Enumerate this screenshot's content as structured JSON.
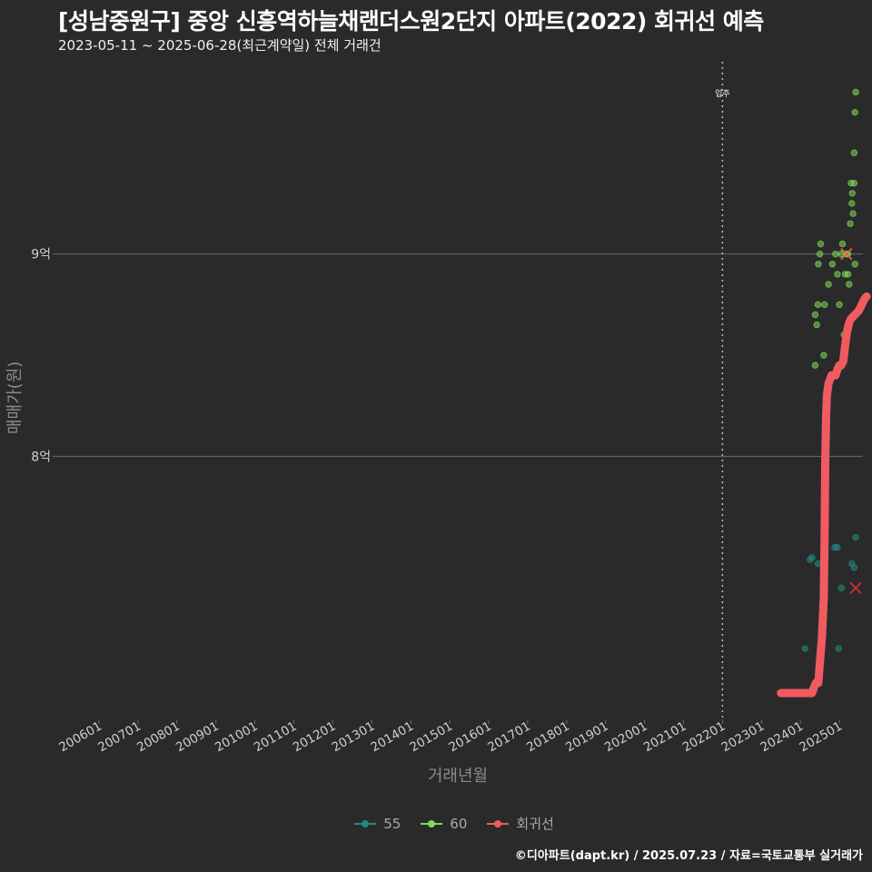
{
  "header": {
    "title": "[성남중원구] 중앙 신흥역하늘채랜더스원2단지 아파트(2022) 회귀선 예측",
    "subtitle": "2023-05-11 ~ 2025-06-28(최근계약일) 전체 거래건"
  },
  "footer": {
    "credit": "©디아파트(dapt.kr) / 2025.07.23 / 자료=국토교통부 실거래가"
  },
  "chart_data": {
    "type": "scatter",
    "title": "[성남중원구] 중앙 신흥역하늘채랜더스원2단지 아파트(2022) 회귀선 예측",
    "xlabel": "거래년월",
    "ylabel": "매매가(원)",
    "xlim": [
      2006.0,
      2026.7
    ],
    "ylim": [
      6.7,
      9.95
    ],
    "ytick_values": [
      8,
      9
    ],
    "ytick_labels": [
      "8억",
      "9억"
    ],
    "xtick_values": [
      2006.0,
      2007.0,
      2008.0,
      2009.0,
      2010.0,
      2011.0,
      2012.0,
      2013.0,
      2014.0,
      2015.0,
      2016.0,
      2017.0,
      2018.0,
      2019.0,
      2020.0,
      2021.0,
      2022.0,
      2023.0,
      2024.0,
      2025.0
    ],
    "xtick_labels": [
      "200601",
      "200701",
      "200801",
      "200901",
      "201001",
      "201101",
      "201201",
      "201301",
      "201401",
      "201501",
      "201601",
      "201701",
      "201801",
      "201901",
      "202001",
      "202101",
      "202201",
      "202301",
      "202401",
      "202501"
    ],
    "vline": {
      "x": 2022.0,
      "label": "입주"
    },
    "colors": {
      "s55": "#1f8a7d",
      "s60": "#7ed957",
      "reg": "#f05b5f",
      "grid": "#6a6a6a",
      "tick": "#cfcfcf"
    },
    "series": [
      {
        "name": "55",
        "points": [
          [
            2024.12,
            7.05
          ],
          [
            2024.25,
            7.49
          ],
          [
            2024.3,
            7.5
          ],
          [
            2024.45,
            7.47
          ],
          [
            2024.88,
            7.55
          ],
          [
            2024.95,
            7.55
          ],
          [
            2024.98,
            7.05
          ],
          [
            2025.05,
            7.35
          ],
          [
            2025.32,
            7.47
          ],
          [
            2025.38,
            7.45
          ],
          [
            2025.42,
            7.6
          ]
        ]
      },
      {
        "name": "60",
        "points": [
          [
            2024.38,
            8.45
          ],
          [
            2024.38,
            8.7
          ],
          [
            2024.42,
            8.65
          ],
          [
            2024.45,
            8.75
          ],
          [
            2024.46,
            8.95
          ],
          [
            2024.5,
            9.0
          ],
          [
            2024.52,
            9.05
          ],
          [
            2024.6,
            8.5
          ],
          [
            2024.62,
            8.75
          ],
          [
            2024.72,
            8.85
          ],
          [
            2024.82,
            8.95
          ],
          [
            2024.9,
            9.0
          ],
          [
            2024.95,
            8.9
          ],
          [
            2025.0,
            8.75
          ],
          [
            2025.05,
            9.0
          ],
          [
            2025.08,
            9.05
          ],
          [
            2025.12,
            8.6
          ],
          [
            2025.15,
            8.9
          ],
          [
            2025.18,
            9.0
          ],
          [
            2025.22,
            8.9
          ],
          [
            2025.25,
            8.85
          ],
          [
            2025.28,
            9.15
          ],
          [
            2025.3,
            9.35
          ],
          [
            2025.32,
            9.25
          ],
          [
            2025.33,
            9.3
          ],
          [
            2025.35,
            9.2
          ],
          [
            2025.38,
            9.5
          ],
          [
            2025.4,
            9.7
          ],
          [
            2025.42,
            9.8
          ],
          [
            2025.4,
            8.95
          ],
          [
            2025.38,
            9.35
          ],
          [
            2025.22,
            9.0
          ]
        ]
      },
      {
        "name": "회귀선",
        "points": [
          [
            2023.5,
            6.83
          ],
          [
            2024.3,
            6.83
          ],
          [
            2024.35,
            6.86
          ],
          [
            2024.4,
            6.88
          ],
          [
            2024.46,
            6.88
          ],
          [
            2024.5,
            6.98
          ],
          [
            2024.55,
            7.1
          ],
          [
            2024.6,
            7.3
          ],
          [
            2024.62,
            7.6
          ],
          [
            2024.64,
            8.0
          ],
          [
            2024.66,
            8.2
          ],
          [
            2024.68,
            8.3
          ],
          [
            2024.72,
            8.36
          ],
          [
            2024.8,
            8.4
          ],
          [
            2024.9,
            8.4
          ],
          [
            2024.95,
            8.43
          ],
          [
            2025.0,
            8.45
          ],
          [
            2025.05,
            8.45
          ],
          [
            2025.1,
            8.47
          ],
          [
            2025.15,
            8.55
          ],
          [
            2025.2,
            8.62
          ],
          [
            2025.25,
            8.66
          ],
          [
            2025.3,
            8.68
          ],
          [
            2025.4,
            8.7
          ],
          [
            2025.5,
            8.72
          ],
          [
            2025.55,
            8.74
          ],
          [
            2025.6,
            8.76
          ],
          [
            2025.65,
            8.78
          ],
          [
            2025.7,
            8.79
          ]
        ]
      }
    ],
    "predictions": [
      {
        "series": "60",
        "x": 2025.18,
        "y": 9.0
      },
      {
        "series": "55",
        "x": 2025.42,
        "y": 7.35
      }
    ],
    "legend": {
      "position": "bottom",
      "entries": [
        "55",
        "60",
        "회귀선"
      ]
    }
  }
}
